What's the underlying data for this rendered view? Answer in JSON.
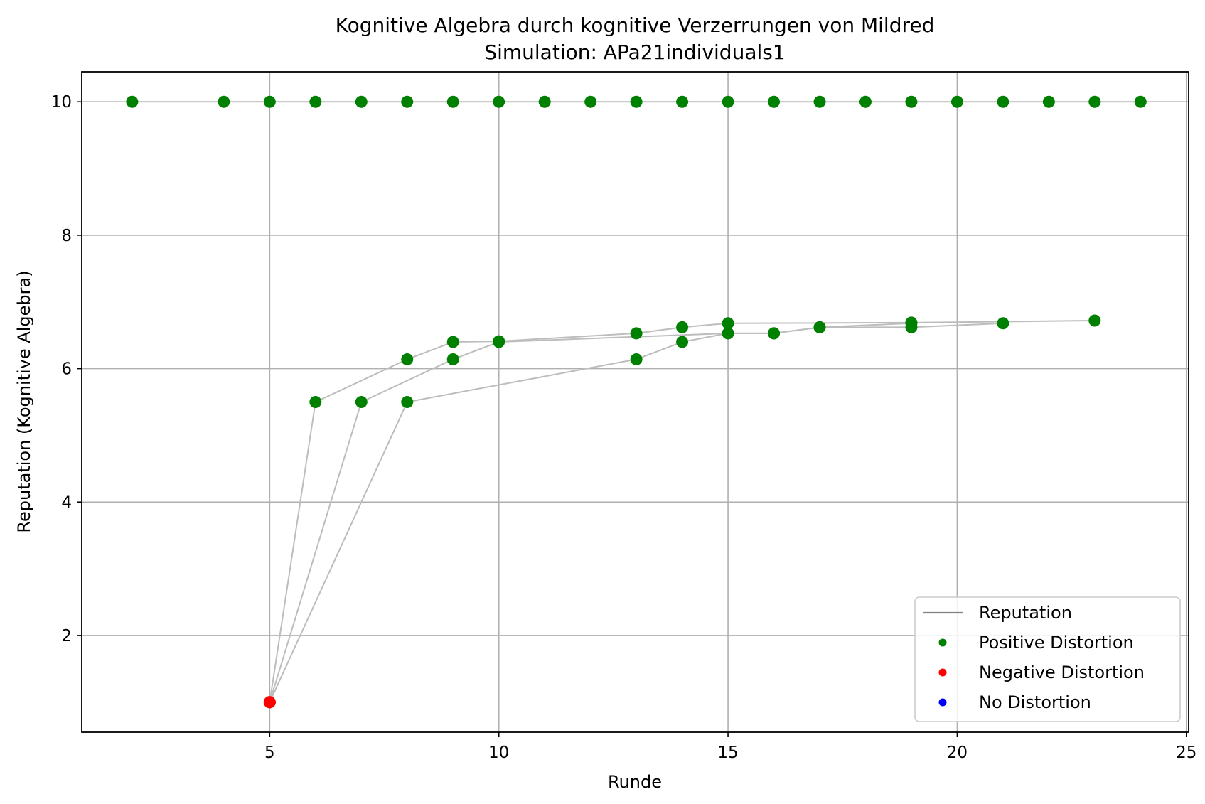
{
  "chart_data": {
    "type": "scatter",
    "title": "Kognitive Algebra durch kognitive Verzerrungen von Mildred",
    "subtitle": "Simulation: APa21individuals1",
    "xlabel": "Runde",
    "ylabel": "Reputation (Kognitive Algebra)",
    "xlim": [
      0.9,
      25.05
    ],
    "ylim": [
      0.55,
      10.45
    ],
    "xticks": [
      5,
      10,
      15,
      20,
      25
    ],
    "yticks": [
      2,
      4,
      6,
      8,
      10
    ],
    "xtick_labels": [
      "5",
      "10",
      "15",
      "20",
      "25"
    ],
    "ytick_labels": [
      "2",
      "4",
      "6",
      "8",
      "10"
    ],
    "grid": true,
    "legend_position": "lower right",
    "colors": {
      "reputation_line": "#808080",
      "trajectory_line": "#bdbdbd",
      "positive": "#008000",
      "negative": "#ff0000",
      "none": "#0000ff",
      "grid": "#b0b0b0"
    },
    "legend": [
      {
        "label": "Reputation",
        "kind": "line",
        "color": "#808080"
      },
      {
        "label": "Positive Distortion",
        "kind": "dot",
        "color": "#008000"
      },
      {
        "label": "Negative Distortion",
        "kind": "dot",
        "color": "#ff0000"
      },
      {
        "label": "No Distortion",
        "kind": "dot",
        "color": "#0000ff"
      }
    ],
    "series": [
      {
        "x": [
          2,
          4,
          5,
          6,
          7,
          8,
          9,
          10,
          11,
          12,
          13,
          14,
          15,
          16,
          17,
          18,
          19,
          20,
          21,
          22,
          23,
          24
        ],
        "y": [
          10,
          10,
          10,
          10,
          10,
          10,
          10,
          10,
          10,
          10,
          10,
          10,
          10,
          10,
          10,
          10,
          10,
          10,
          10,
          10,
          10,
          10
        ],
        "distortion": [
          "positive",
          "positive",
          "positive",
          "positive",
          "positive",
          "positive",
          "positive",
          "positive",
          "positive",
          "positive",
          "positive",
          "positive",
          "positive",
          "positive",
          "positive",
          "positive",
          "positive",
          "positive",
          "positive",
          "positive",
          "positive",
          "positive"
        ]
      },
      {
        "x": [
          5,
          6,
          8,
          9,
          10,
          13,
          14,
          15,
          19,
          23
        ],
        "y": [
          1.0,
          5.5,
          6.14,
          6.4,
          6.41,
          6.53,
          6.62,
          6.68,
          6.69,
          6.72
        ],
        "distortion": [
          "negative",
          "positive",
          "positive",
          "positive",
          "positive",
          "positive",
          "positive",
          "positive",
          "positive",
          "positive"
        ]
      },
      {
        "x": [
          5,
          7,
          9,
          10,
          15,
          16,
          17,
          19,
          21
        ],
        "y": [
          1.0,
          5.5,
          6.14,
          6.4,
          6.53,
          6.53,
          6.62,
          6.62,
          6.68
        ],
        "distortion": [
          "negative",
          "positive",
          "positive",
          "positive",
          "positive",
          "positive",
          "positive",
          "positive",
          "positive"
        ]
      },
      {
        "x": [
          5,
          8,
          13,
          14,
          15,
          16,
          17,
          19
        ],
        "y": [
          1.0,
          5.5,
          6.14,
          6.4,
          6.53,
          6.53,
          6.62,
          6.68
        ],
        "distortion": [
          "negative",
          "positive",
          "positive",
          "positive",
          "positive",
          "positive",
          "positive",
          "positive"
        ]
      }
    ]
  }
}
